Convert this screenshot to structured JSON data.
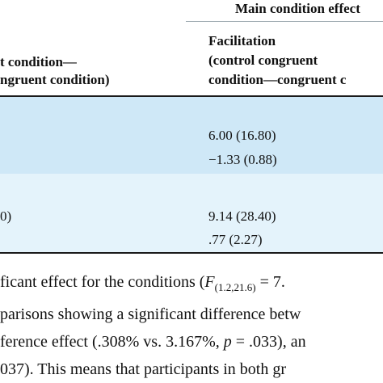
{
  "table": {
    "group_header": "Main condition effect",
    "col_left_header": {
      "line1": "t condition—",
      "line2": "ngruent condition)"
    },
    "col_facilitation_header": {
      "line1": "Facilitation",
      "line2": "(control congruent",
      "line3": "condition—congruent c"
    },
    "group1": {
      "row1": "6.00 (16.80)",
      "row2": "−1.33 (0.88)"
    },
    "group2": {
      "left_fragment": "0)",
      "row1": "9.14 (28.40)",
      "row2": ".77 (2.27)"
    }
  },
  "paragraph": {
    "line1_prefix": "ficant effect for the conditions (",
    "line1_F": "F",
    "line1_sub": "(1.2,21.6)",
    "line1_suffix": " = 7.",
    "line2": "parisons showing a significant difference betw",
    "line3_prefix": "ference effect (.308% vs. 3.167%, ",
    "line3_p": "p",
    "line3_suffix": " = .033), an",
    "line4": "037). This means that participants in both gr"
  }
}
